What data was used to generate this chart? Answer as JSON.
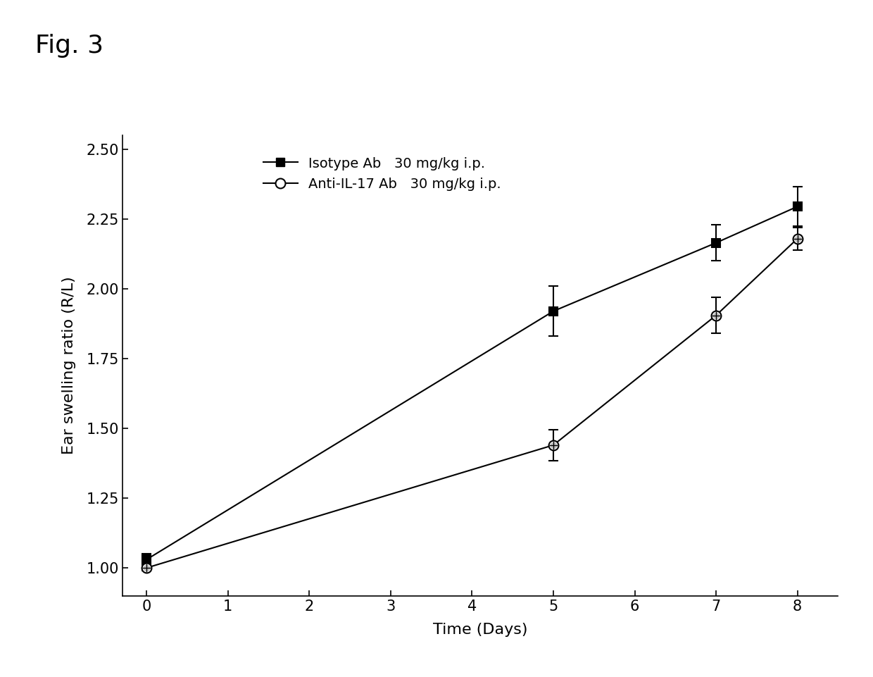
{
  "xlabel": "Time (Days)",
  "ylabel": "Ear swelling ratio (R/L)",
  "xlim": [
    -0.3,
    8.5
  ],
  "ylim": [
    0.9,
    2.55
  ],
  "xticks": [
    0,
    1,
    2,
    3,
    4,
    5,
    6,
    7,
    8
  ],
  "yticks": [
    1.0,
    1.25,
    1.5,
    1.75,
    2.0,
    2.25,
    2.5
  ],
  "series": [
    {
      "label": "Isotype Ab   30 mg/kg i.p.",
      "x": [
        0,
        5,
        7,
        8
      ],
      "y": [
        1.03,
        1.92,
        2.165,
        2.295
      ],
      "yerr": [
        0.02,
        0.09,
        0.065,
        0.07
      ],
      "marker": "s",
      "color": "#000000",
      "markersize": 9,
      "fillstyle": "full"
    },
    {
      "label": "Anti-IL-17 Ab   30 mg/kg i.p.",
      "x": [
        0,
        5,
        7,
        8
      ],
      "y": [
        1.0,
        1.44,
        1.905,
        2.18
      ],
      "yerr": [
        0.01,
        0.055,
        0.065,
        0.04
      ],
      "marker": "o",
      "color": "#000000",
      "markersize": 10,
      "fillstyle": "none"
    }
  ],
  "background_color": "#ffffff",
  "fig_title": "Fig. 3",
  "fig_title_fontsize": 26,
  "axis_label_fontsize": 16,
  "tick_fontsize": 15,
  "legend_fontsize": 14
}
